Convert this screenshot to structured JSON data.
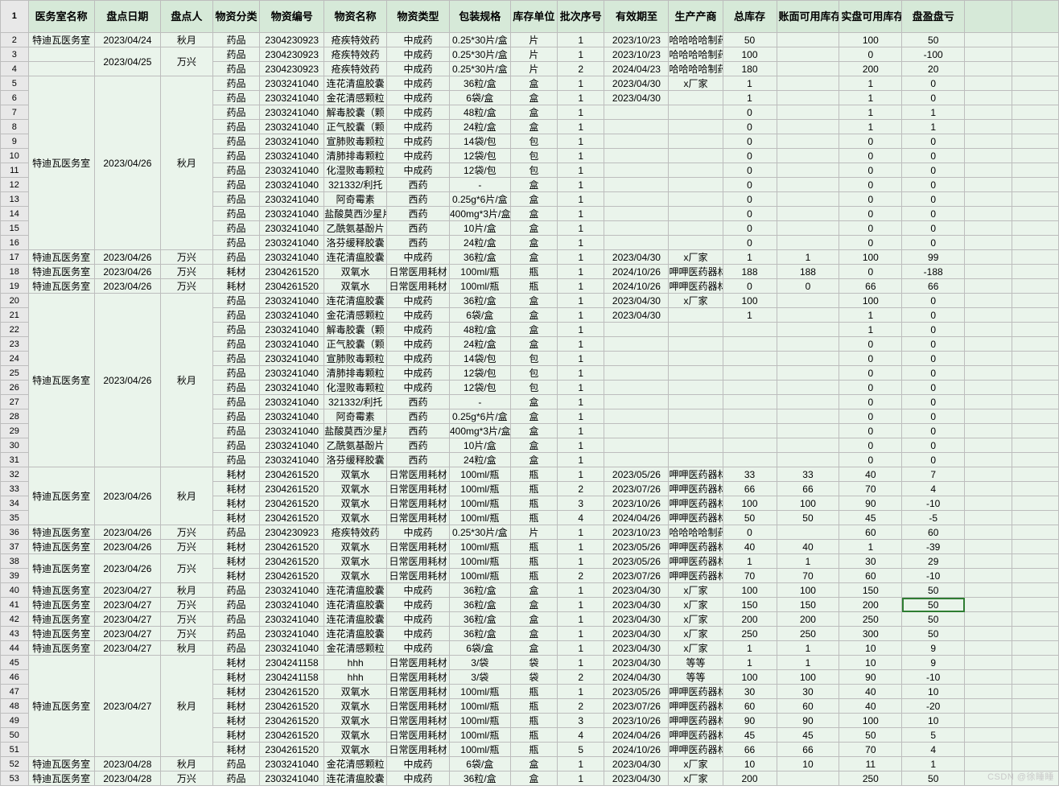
{
  "watermark": "CSDN @徐睡睡",
  "selected_row_index": 39,
  "columns": [
    "医务室名称",
    "盘点日期",
    "盘点人",
    "物资分类",
    "物资编号",
    "物资名称",
    "物资类型",
    "包装规格",
    "库存单位",
    "批次序号",
    "有效期至",
    "生产产商",
    "总库存",
    "账面可用库存",
    "实盘可用库存",
    "盘盈盘亏"
  ],
  "merges": [
    {
      "col": 1,
      "start": 1,
      "span": 2
    },
    {
      "col": 2,
      "start": 1,
      "span": 2
    },
    {
      "col": 0,
      "start": 3,
      "span": 12
    },
    {
      "col": 1,
      "start": 3,
      "span": 12
    },
    {
      "col": 2,
      "start": 3,
      "span": 12
    },
    {
      "col": 0,
      "start": 18,
      "span": 12
    },
    {
      "col": 1,
      "start": 18,
      "span": 12
    },
    {
      "col": 2,
      "start": 18,
      "span": 12
    },
    {
      "col": 0,
      "start": 30,
      "span": 4
    },
    {
      "col": 1,
      "start": 30,
      "span": 4
    },
    {
      "col": 2,
      "start": 30,
      "span": 4
    },
    {
      "col": 0,
      "start": 36,
      "span": 2
    },
    {
      "col": 1,
      "start": 36,
      "span": 2
    },
    {
      "col": 2,
      "start": 36,
      "span": 2
    },
    {
      "col": 0,
      "start": 43,
      "span": 7
    },
    {
      "col": 1,
      "start": 43,
      "span": 7
    },
    {
      "col": 2,
      "start": 43,
      "span": 7
    }
  ],
  "styling": {
    "header_bg": "#d6e9d8",
    "cell_bg": "#eaf4eb",
    "border": "#bdbdbd",
    "rownum_bg": "#e8e8e8",
    "selection_border": "#2e7d32",
    "font": "Microsoft YaHei",
    "header_fontsize": 13,
    "cell_fontsize": 12
  },
  "rows": [
    [
      "特迪瓦医务室",
      "2023/04/24",
      "秋月",
      "药品",
      "2304230923",
      "疮疾特效药",
      "中成药",
      "0.25*30片/盒",
      "片",
      "1",
      "2023/10/23",
      "哈哈哈哈制药",
      "50",
      "",
      "100",
      "50"
    ],
    [
      "",
      "2023/04/25",
      "万兴",
      "药品",
      "2304230923",
      "疮疾特效药",
      "中成药",
      "0.25*30片/盒",
      "片",
      "1",
      "2023/10/23",
      "哈哈哈哈制药",
      "100",
      "",
      "0",
      "-100"
    ],
    [
      "",
      "",
      "",
      "药品",
      "2304230923",
      "疮疾特效药",
      "中成药",
      "0.25*30片/盒",
      "片",
      "2",
      "2024/04/23",
      "哈哈哈哈制药",
      "180",
      "",
      "200",
      "20"
    ],
    [
      "特迪瓦医务室",
      "2023/04/26",
      "秋月",
      "药品",
      "2303241040",
      "连花清瘟胶囊",
      "中成药",
      "36粒/盒",
      "盒",
      "1",
      "2023/04/30",
      "x厂家",
      "1",
      "",
      "1",
      "0"
    ],
    [
      "",
      "",
      "",
      "药品",
      "2303241040",
      "金花清感颗粒",
      "中成药",
      "6袋/盒",
      "盒",
      "1",
      "2023/04/30",
      "",
      "1",
      "",
      "1",
      "0"
    ],
    [
      "",
      "",
      "",
      "药品",
      "2303241040",
      "解毒胶囊（颗",
      "中成药",
      "48粒/盒",
      "盒",
      "1",
      "",
      "",
      "0",
      "",
      "1",
      "1"
    ],
    [
      "",
      "",
      "",
      "药品",
      "2303241040",
      "正气胶囊（颗",
      "中成药",
      "24粒/盒",
      "盒",
      "1",
      "",
      "",
      "0",
      "",
      "1",
      "1"
    ],
    [
      "",
      "",
      "",
      "药品",
      "2303241040",
      "宣肺败毒颗粒",
      "中成药",
      "14袋/包",
      "包",
      "1",
      "",
      "",
      "0",
      "",
      "0",
      "0"
    ],
    [
      "",
      "",
      "",
      "药品",
      "2303241040",
      "清肺排毒颗粒",
      "中成药",
      "12袋/包",
      "包",
      "1",
      "",
      "",
      "0",
      "",
      "0",
      "0"
    ],
    [
      "",
      "",
      "",
      "药品",
      "2303241040",
      "化湿败毒颗粒",
      "中成药",
      "12袋/包",
      "包",
      "1",
      "",
      "",
      "0",
      "",
      "0",
      "0"
    ],
    [
      "",
      "",
      "",
      "药品",
      "2303241040",
      "321332/利托",
      "西药",
      "-",
      "盒",
      "1",
      "",
      "",
      "0",
      "",
      "0",
      "0"
    ],
    [
      "",
      "",
      "",
      "药品",
      "2303241040",
      "阿奇霉素",
      "西药",
      "0.25g*6片/盒",
      "盒",
      "1",
      "",
      "",
      "0",
      "",
      "0",
      "0"
    ],
    [
      "",
      "",
      "",
      "药品",
      "2303241040",
      "盐酸莫西沙星片",
      "西药",
      "400mg*3片/盒",
      "盒",
      "1",
      "",
      "",
      "0",
      "",
      "0",
      "0"
    ],
    [
      "",
      "",
      "",
      "药品",
      "2303241040",
      "乙酰氨基酚片",
      "西药",
      "10片/盒",
      "盒",
      "1",
      "",
      "",
      "0",
      "",
      "0",
      "0"
    ],
    [
      "",
      "",
      "",
      "药品",
      "2303241040",
      "洛芬缓释胶囊",
      "西药",
      "24粒/盒",
      "盒",
      "1",
      "",
      "",
      "0",
      "",
      "0",
      "0"
    ],
    [
      "特迪瓦医务室",
      "2023/04/26",
      "万兴",
      "药品",
      "2303241040",
      "连花清瘟胶囊",
      "中成药",
      "36粒/盒",
      "盒",
      "1",
      "2023/04/30",
      "x厂家",
      "1",
      "1",
      "100",
      "99"
    ],
    [
      "特迪瓦医务室",
      "2023/04/26",
      "万兴",
      "耗材",
      "2304261520",
      "双氧水",
      "日常医用耗材",
      "100ml/瓶",
      "瓶",
      "1",
      "2024/10/26",
      "呷呷医药器材",
      "188",
      "188",
      "0",
      "-188"
    ],
    [
      "特迪瓦医务室",
      "2023/04/26",
      "万兴",
      "耗材",
      "2304261520",
      "双氧水",
      "日常医用耗材",
      "100ml/瓶",
      "瓶",
      "1",
      "2024/10/26",
      "呷呷医药器材",
      "0",
      "0",
      "66",
      "66"
    ],
    [
      "特迪瓦医务室",
      "2023/04/26",
      "秋月",
      "药品",
      "2303241040",
      "连花清瘟胶囊",
      "中成药",
      "36粒/盒",
      "盒",
      "1",
      "2023/04/30",
      "x厂家",
      "100",
      "",
      "100",
      "0"
    ],
    [
      "",
      "",
      "",
      "药品",
      "2303241040",
      "金花清感颗粒",
      "中成药",
      "6袋/盒",
      "盒",
      "1",
      "2023/04/30",
      "",
      "1",
      "",
      "1",
      "0"
    ],
    [
      "",
      "",
      "",
      "药品",
      "2303241040",
      "解毒胶囊（颗",
      "中成药",
      "48粒/盒",
      "盒",
      "1",
      "",
      "",
      "",
      "",
      "1",
      "0"
    ],
    [
      "",
      "",
      "",
      "药品",
      "2303241040",
      "正气胶囊（颗",
      "中成药",
      "24粒/盒",
      "盒",
      "1",
      "",
      "",
      "",
      "",
      "0",
      "0"
    ],
    [
      "",
      "",
      "",
      "药品",
      "2303241040",
      "宣肺败毒颗粒",
      "中成药",
      "14袋/包",
      "包",
      "1",
      "",
      "",
      "",
      "",
      "0",
      "0"
    ],
    [
      "",
      "",
      "",
      "药品",
      "2303241040",
      "清肺排毒颗粒",
      "中成药",
      "12袋/包",
      "包",
      "1",
      "",
      "",
      "",
      "",
      "0",
      "0"
    ],
    [
      "",
      "",
      "",
      "药品",
      "2303241040",
      "化湿败毒颗粒",
      "中成药",
      "12袋/包",
      "包",
      "1",
      "",
      "",
      "",
      "",
      "0",
      "0"
    ],
    [
      "",
      "",
      "",
      "药品",
      "2303241040",
      "321332/利托",
      "西药",
      "-",
      "盒",
      "1",
      "",
      "",
      "",
      "",
      "0",
      "0"
    ],
    [
      "",
      "",
      "",
      "药品",
      "2303241040",
      "阿奇霉素",
      "西药",
      "0.25g*6片/盒",
      "盒",
      "1",
      "",
      "",
      "",
      "",
      "0",
      "0"
    ],
    [
      "",
      "",
      "",
      "药品",
      "2303241040",
      "盐酸莫西沙星片",
      "西药",
      "400mg*3片/盒",
      "盒",
      "1",
      "",
      "",
      "",
      "",
      "0",
      "0"
    ],
    [
      "",
      "",
      "",
      "药品",
      "2303241040",
      "乙酰氨基酚片",
      "西药",
      "10片/盒",
      "盒",
      "1",
      "",
      "",
      "",
      "",
      "0",
      "0"
    ],
    [
      "",
      "",
      "",
      "药品",
      "2303241040",
      "洛芬缓释胶囊",
      "西药",
      "24粒/盒",
      "盒",
      "1",
      "",
      "",
      "",
      "",
      "0",
      "0"
    ],
    [
      "特迪瓦医务室",
      "2023/04/26",
      "秋月",
      "耗材",
      "2304261520",
      "双氧水",
      "日常医用耗材",
      "100ml/瓶",
      "瓶",
      "1",
      "2023/05/26",
      "呷呷医药器材",
      "33",
      "33",
      "40",
      "7"
    ],
    [
      "",
      "",
      "",
      "耗材",
      "2304261520",
      "双氧水",
      "日常医用耗材",
      "100ml/瓶",
      "瓶",
      "2",
      "2023/07/26",
      "呷呷医药器材",
      "66",
      "66",
      "70",
      "4"
    ],
    [
      "",
      "",
      "",
      "耗材",
      "2304261520",
      "双氧水",
      "日常医用耗材",
      "100ml/瓶",
      "瓶",
      "3",
      "2023/10/26",
      "呷呷医药器材",
      "100",
      "100",
      "90",
      "-10"
    ],
    [
      "",
      "",
      "",
      "耗材",
      "2304261520",
      "双氧水",
      "日常医用耗材",
      "100ml/瓶",
      "瓶",
      "4",
      "2024/04/26",
      "呷呷医药器材",
      "50",
      "50",
      "45",
      "-5"
    ],
    [
      "特迪瓦医务室",
      "2023/04/26",
      "万兴",
      "药品",
      "2304230923",
      "疮疾特效药",
      "中成药",
      "0.25*30片/盒",
      "片",
      "1",
      "2023/10/23",
      "哈哈哈哈制药",
      "0",
      "",
      "60",
      "60"
    ],
    [
      "特迪瓦医务室",
      "2023/04/26",
      "万兴",
      "耗材",
      "2304261520",
      "双氧水",
      "日常医用耗材",
      "100ml/瓶",
      "瓶",
      "1",
      "2023/05/26",
      "呷呷医药器材",
      "40",
      "40",
      "1",
      "-39"
    ],
    [
      "特迪瓦医务室",
      "2023/04/26",
      "万兴",
      "耗材",
      "2304261520",
      "双氧水",
      "日常医用耗材",
      "100ml/瓶",
      "瓶",
      "1",
      "2023/05/26",
      "呷呷医药器材",
      "1",
      "1",
      "30",
      "29"
    ],
    [
      "",
      "",
      "",
      "耗材",
      "2304261520",
      "双氧水",
      "日常医用耗材",
      "100ml/瓶",
      "瓶",
      "2",
      "2023/07/26",
      "呷呷医药器材",
      "70",
      "70",
      "60",
      "-10"
    ],
    [
      "特迪瓦医务室",
      "2023/04/27",
      "秋月",
      "药品",
      "2303241040",
      "连花清瘟胶囊",
      "中成药",
      "36粒/盒",
      "盒",
      "1",
      "2023/04/30",
      "x厂家",
      "100",
      "100",
      "150",
      "50"
    ],
    [
      "特迪瓦医务室",
      "2023/04/27",
      "万兴",
      "药品",
      "2303241040",
      "连花清瘟胶囊",
      "中成药",
      "36粒/盒",
      "盒",
      "1",
      "2023/04/30",
      "x厂家",
      "150",
      "150",
      "200",
      "50"
    ],
    [
      "特迪瓦医务室",
      "2023/04/27",
      "万兴",
      "药品",
      "2303241040",
      "连花清瘟胶囊",
      "中成药",
      "36粒/盒",
      "盒",
      "1",
      "2023/04/30",
      "x厂家",
      "200",
      "200",
      "250",
      "50"
    ],
    [
      "特迪瓦医务室",
      "2023/04/27",
      "万兴",
      "药品",
      "2303241040",
      "连花清瘟胶囊",
      "中成药",
      "36粒/盒",
      "盒",
      "1",
      "2023/04/30",
      "x厂家",
      "250",
      "250",
      "300",
      "50"
    ],
    [
      "特迪瓦医务室",
      "2023/04/27",
      "秋月",
      "药品",
      "2303241040",
      "金花清感颗粒",
      "中成药",
      "6袋/盒",
      "盒",
      "1",
      "2023/04/30",
      "x厂家",
      "1",
      "1",
      "10",
      "9"
    ],
    [
      "特迪瓦医务室",
      "2023/04/27",
      "秋月",
      "耗材",
      "2304241158",
      "hhh",
      "日常医用耗材",
      "3/袋",
      "袋",
      "1",
      "2023/04/30",
      "等等",
      "1",
      "1",
      "10",
      "9"
    ],
    [
      "",
      "",
      "",
      "耗材",
      "2304241158",
      "hhh",
      "日常医用耗材",
      "3/袋",
      "袋",
      "2",
      "2024/04/30",
      "等等",
      "100",
      "100",
      "90",
      "-10"
    ],
    [
      "",
      "",
      "",
      "耗材",
      "2304261520",
      "双氧水",
      "日常医用耗材",
      "100ml/瓶",
      "瓶",
      "1",
      "2023/05/26",
      "呷呷医药器材",
      "30",
      "30",
      "40",
      "10"
    ],
    [
      "",
      "",
      "",
      "耗材",
      "2304261520",
      "双氧水",
      "日常医用耗材",
      "100ml/瓶",
      "瓶",
      "2",
      "2023/07/26",
      "呷呷医药器材",
      "60",
      "60",
      "40",
      "-20"
    ],
    [
      "",
      "",
      "",
      "耗材",
      "2304261520",
      "双氧水",
      "日常医用耗材",
      "100ml/瓶",
      "瓶",
      "3",
      "2023/10/26",
      "呷呷医药器材",
      "90",
      "90",
      "100",
      "10"
    ],
    [
      "",
      "",
      "",
      "耗材",
      "2304261520",
      "双氧水",
      "日常医用耗材",
      "100ml/瓶",
      "瓶",
      "4",
      "2024/04/26",
      "呷呷医药器材",
      "45",
      "45",
      "50",
      "5"
    ],
    [
      "",
      "",
      "",
      "耗材",
      "2304261520",
      "双氧水",
      "日常医用耗材",
      "100ml/瓶",
      "瓶",
      "5",
      "2024/10/26",
      "呷呷医药器材",
      "66",
      "66",
      "70",
      "4"
    ],
    [
      "特迪瓦医务室",
      "2023/04/28",
      "秋月",
      "药品",
      "2303241040",
      "金花清感颗粒",
      "中成药",
      "6袋/盒",
      "盒",
      "1",
      "2023/04/30",
      "x厂家",
      "10",
      "10",
      "11",
      "1"
    ],
    [
      "特迪瓦医务室",
      "2023/04/28",
      "万兴",
      "药品",
      "2303241040",
      "连花清瘟胶囊",
      "中成药",
      "36粒/盒",
      "盒",
      "1",
      "2023/04/30",
      "x厂家",
      "200",
      "",
      "250",
      "50"
    ]
  ]
}
